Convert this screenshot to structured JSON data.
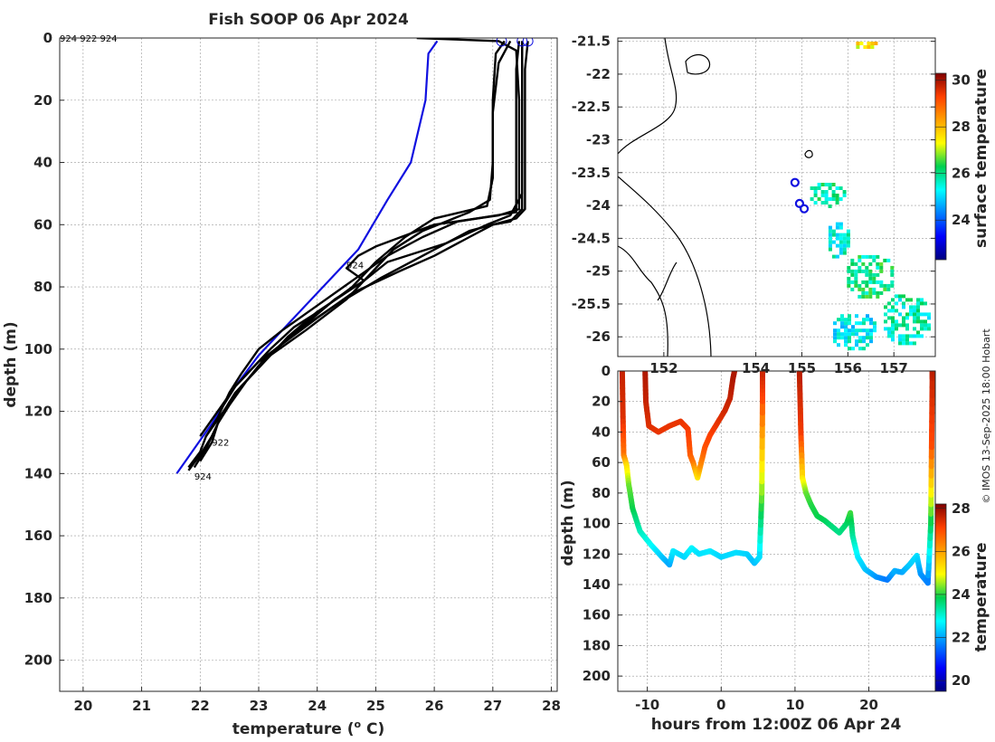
{
  "colors": {
    "mean_profile": "#1010e0",
    "profiles": "#000000",
    "ship": "#1010e0",
    "axes": "#262626"
  },
  "chart_data": [
    {
      "type": "line",
      "title": "Fish SOOP 06 Apr 2024",
      "xlabel": "temperature (",
      "xlabel_sup": "o",
      "xlabel_end": " C)",
      "ylabel": "depth (m)",
      "xlim": [
        19.6,
        28.1
      ],
      "ylim": [
        210,
        0
      ],
      "xticks": [
        20,
        21,
        22,
        23,
        24,
        25,
        26,
        27,
        28
      ],
      "yticks": [
        0,
        20,
        40,
        60,
        80,
        100,
        120,
        140,
        160,
        180,
        200
      ],
      "header_ids": "924 922 924",
      "annotations": [
        {
          "text": "924",
          "x": 24.5,
          "y": 74
        },
        {
          "text": "922",
          "x": 22.2,
          "y": 131
        },
        {
          "text": "924",
          "x": 21.9,
          "y": 142
        }
      ],
      "surface_markers": [
        {
          "x": 27.15,
          "y": 1
        },
        {
          "x": 27.5,
          "y": 1
        },
        {
          "x": 27.6,
          "y": 1
        }
      ],
      "series": [
        {
          "name": "mean",
          "color": "#1010e0",
          "points": [
            [
              26.05,
              1
            ],
            [
              25.9,
              5
            ],
            [
              25.85,
              20
            ],
            [
              25.6,
              40
            ],
            [
              25.2,
              52
            ],
            [
              24.7,
              68
            ],
            [
              24.3,
              76
            ],
            [
              23.6,
              90
            ],
            [
              23.0,
              102
            ],
            [
              22.6,
              112
            ],
            [
              22.2,
              124
            ],
            [
              21.9,
              132
            ],
            [
              21.6,
              140
            ]
          ]
        },
        {
          "name": "p1",
          "color": "#000000",
          "points": [
            [
              25.7,
              0
            ],
            [
              27.1,
              1
            ],
            [
              27.4,
              4
            ],
            [
              27.45,
              20
            ],
            [
              27.45,
              40
            ],
            [
              27.45,
              55
            ],
            [
              27.1,
              57
            ],
            [
              26.0,
              60
            ],
            [
              25.0,
              67
            ],
            [
              24.7,
              70
            ],
            [
              24.5,
              74
            ],
            [
              24.8,
              78
            ],
            [
              24.3,
              84
            ],
            [
              23.8,
              92
            ],
            [
              23.3,
              100
            ],
            [
              22.9,
              108
            ],
            [
              22.6,
              114
            ],
            [
              22.4,
              120
            ],
            [
              22.1,
              128
            ],
            [
              22.0,
              133
            ],
            [
              21.8,
              138
            ]
          ]
        },
        {
          "name": "p2",
          "color": "#000000",
          "points": [
            [
              27.2,
              1
            ],
            [
              27.05,
              5
            ],
            [
              27.0,
              20
            ],
            [
              27.0,
              40
            ],
            [
              26.95,
              52
            ],
            [
              26.6,
              56
            ],
            [
              25.8,
              62
            ],
            [
              25.3,
              68
            ],
            [
              24.9,
              76
            ],
            [
              24.5,
              84
            ],
            [
              23.8,
              94
            ],
            [
              23.2,
              102
            ],
            [
              22.8,
              110
            ],
            [
              22.5,
              118
            ],
            [
              22.3,
              124
            ],
            [
              22.2,
              130
            ],
            [
              22.0,
              136
            ]
          ]
        },
        {
          "name": "p3",
          "color": "#000000",
          "points": [
            [
              27.5,
              1
            ],
            [
              27.5,
              10
            ],
            [
              27.5,
              30
            ],
            [
              27.5,
              50
            ],
            [
              27.3,
              57
            ],
            [
              26.9,
              60
            ],
            [
              26.2,
              66
            ],
            [
              25.2,
              72
            ],
            [
              24.8,
              78
            ],
            [
              24.0,
              88
            ],
            [
              23.5,
              96
            ],
            [
              23.1,
              104
            ],
            [
              22.7,
              112
            ],
            [
              22.4,
              120
            ],
            [
              22.2,
              128
            ],
            [
              22.0,
              134
            ],
            [
              21.8,
              139
            ]
          ]
        },
        {
          "name": "p4",
          "color": "#000000",
          "points": [
            [
              27.6,
              1
            ],
            [
              27.55,
              10
            ],
            [
              27.55,
              35
            ],
            [
              27.55,
              55
            ],
            [
              27.4,
              58
            ],
            [
              26.6,
              62
            ],
            [
              25.8,
              70
            ],
            [
              25.1,
              77
            ],
            [
              24.3,
              86
            ],
            [
              23.6,
              95
            ],
            [
              23.1,
              103
            ],
            [
              22.8,
              110
            ],
            [
              22.5,
              117
            ],
            [
              22.3,
              124
            ],
            [
              22.1,
              132
            ],
            [
              21.9,
              138
            ]
          ]
        },
        {
          "name": "p5",
          "color": "#000000",
          "points": [
            [
              27.45,
              1
            ],
            [
              27.4,
              10
            ],
            [
              27.4,
              40
            ],
            [
              27.4,
              56
            ],
            [
              26.4,
              59
            ],
            [
              25.8,
              64
            ],
            [
              25.2,
              70
            ],
            [
              24.6,
              78
            ],
            [
              24.0,
              86
            ],
            [
              23.4,
              94
            ],
            [
              23.0,
              100
            ],
            [
              22.7,
              108
            ],
            [
              22.5,
              114
            ],
            [
              22.3,
              122
            ],
            [
              22.1,
              128
            ]
          ]
        },
        {
          "name": "p6",
          "color": "#000000",
          "points": [
            [
              27.3,
              1
            ],
            [
              27.1,
              8
            ],
            [
              27.0,
              24
            ],
            [
              27.0,
              45
            ],
            [
              26.9,
              54
            ],
            [
              26.0,
              58
            ],
            [
              25.5,
              64
            ],
            [
              25.0,
              72
            ],
            [
              24.6,
              80
            ],
            [
              24.1,
              87
            ],
            [
              23.6,
              93
            ],
            [
              23.2,
              100
            ],
            [
              22.9,
              106
            ],
            [
              22.6,
              112
            ],
            [
              22.4,
              118
            ]
          ]
        },
        {
          "name": "p7",
          "color": "#000000",
          "points": [
            [
              27.5,
              1
            ],
            [
              27.5,
              20
            ],
            [
              27.5,
              55
            ],
            [
              27.3,
              59
            ],
            [
              27.0,
              60
            ],
            [
              26.6,
              64
            ],
            [
              26.0,
              70
            ],
            [
              25.4,
              75
            ],
            [
              24.6,
              82
            ],
            [
              24.0,
              90
            ],
            [
              23.5,
              97
            ],
            [
              23.0,
              104
            ],
            [
              22.6,
              112
            ],
            [
              22.3,
              120
            ],
            [
              22.0,
              128
            ]
          ]
        }
      ]
    },
    {
      "type": "heatmap",
      "xticks": [
        152,
        154,
        155,
        156,
        157
      ],
      "yticks": [
        -21.5,
        -22,
        -22.5,
        -23,
        -23.5,
        -24,
        -24.5,
        -25,
        -25.5,
        -26
      ],
      "xlim": [
        151.0,
        157.9
      ],
      "ylim": [
        -26.3,
        -21.45
      ],
      "colorbar_label": "surface temperature",
      "colorbar_range": [
        22.3,
        30.3
      ],
      "colorbar_ticks": [
        24,
        26,
        28,
        30
      ],
      "ship_positions": [
        {
          "lon": 154.85,
          "lat": -23.65
        },
        {
          "lon": 154.95,
          "lat": -23.97
        },
        {
          "lon": 155.05,
          "lat": -24.05
        }
      ],
      "cloud_free_patches": [
        {
          "lon0": 155.1,
          "lon1": 155.9,
          "lat0": -24.0,
          "lat1": -23.6,
          "temp": 25.8
        },
        {
          "lon0": 155.5,
          "lon1": 156.0,
          "lat0": -24.8,
          "lat1": -24.2,
          "temp": 25.5
        },
        {
          "lon0": 155.9,
          "lon1": 157.0,
          "lat0": -25.4,
          "lat1": -24.7,
          "temp": 26.0
        },
        {
          "lon0": 156.7,
          "lon1": 157.8,
          "lat0": -26.1,
          "lat1": -25.3,
          "temp": 25.7
        },
        {
          "lon0": 155.6,
          "lon1": 156.6,
          "lat0": -26.2,
          "lat1": -25.6,
          "temp": 25.3
        },
        {
          "lon0": 156.1,
          "lon1": 156.6,
          "lat0": -21.6,
          "lat1": -21.45,
          "temp": 27.5
        }
      ]
    },
    {
      "type": "scatter",
      "xlabel": "hours from 12:00Z 06 Apr 24",
      "ylabel": "depth (m)",
      "colorbar_label": "temperature",
      "xlim": [
        -14,
        29
      ],
      "ylim": [
        210,
        0
      ],
      "xticks": [
        -10,
        0,
        10,
        20
      ],
      "yticks": [
        0,
        20,
        40,
        60,
        80,
        100,
        120,
        140,
        160,
        180,
        200
      ],
      "colorbar_range": [
        19.5,
        28.2
      ],
      "colorbar_ticks": [
        20,
        22,
        24,
        26,
        28
      ],
      "tracks": [
        {
          "t0": -13.4,
          "t1": 5.6,
          "points": [
            [
              -13.4,
              0,
              27.6
            ],
            [
              -13.3,
              30,
              27.4
            ],
            [
              -13.2,
              55,
              26.5
            ],
            [
              -12.8,
              62,
              25.3
            ],
            [
              -12.5,
              75,
              24.3
            ],
            [
              -12,
              90,
              23.9
            ],
            [
              -11,
              105,
              23.2
            ],
            [
              -9.5,
              114,
              22.8
            ],
            [
              -8,
              122,
              22.3
            ],
            [
              -7,
              127,
              22.0
            ],
            [
              -6.5,
              118,
              22.6
            ],
            [
              -5,
              122,
              22.4
            ],
            [
              -4,
              116,
              22.7
            ],
            [
              -3,
              120,
              22.5
            ],
            [
              -1.5,
              118,
              22.6
            ],
            [
              0,
              122,
              22.4
            ],
            [
              2,
              119,
              22.5
            ],
            [
              3.5,
              120,
              22.4
            ],
            [
              4.5,
              126,
              22.2
            ],
            [
              5.2,
              122,
              22.5
            ],
            [
              5.5,
              80,
              24.5
            ],
            [
              5.6,
              20,
              27.0
            ],
            [
              5.6,
              0,
              27.6
            ]
          ]
        },
        {
          "t0": -10.3,
          "t1": 1.8,
          "points": [
            [
              -10.3,
              0,
              27.8
            ],
            [
              -10.2,
              20,
              27.6
            ],
            [
              -9.8,
              36,
              27.4
            ],
            [
              -8.5,
              40,
              27.3
            ],
            [
              -7,
              36,
              27.3
            ],
            [
              -5.5,
              33,
              27.3
            ],
            [
              -4.5,
              38,
              27.2
            ],
            [
              -4.2,
              55,
              26.8
            ],
            [
              -3.8,
              60,
              26.5
            ],
            [
              -3.2,
              70,
              25.2
            ],
            [
              -2.8,
              62,
              26.2
            ],
            [
              -2.2,
              50,
              26.9
            ],
            [
              -1.5,
              42,
              27.1
            ],
            [
              -0.5,
              34,
              27.3
            ],
            [
              0.5,
              26,
              27.5
            ],
            [
              1.2,
              18,
              27.6
            ],
            [
              1.6,
              5,
              27.8
            ],
            [
              1.8,
              0,
              27.8
            ]
          ]
        },
        {
          "t0": 10.6,
          "t1": 28.6,
          "points": [
            [
              10.6,
              0,
              27.7
            ],
            [
              10.8,
              40,
              27.2
            ],
            [
              11,
              70,
              25.2
            ],
            [
              11.5,
              80,
              24.3
            ],
            [
              12.2,
              88,
              24.0
            ],
            [
              13,
              95,
              23.9
            ],
            [
              14,
              98,
              23.8
            ],
            [
              15,
              102,
              23.6
            ],
            [
              16,
              106,
              23.5
            ],
            [
              17,
              100,
              23.7
            ],
            [
              17.5,
              93,
              24.1
            ],
            [
              17.8,
              108,
              23.4
            ],
            [
              18.5,
              122,
              22.6
            ],
            [
              19.5,
              130,
              22.3
            ],
            [
              21,
              135,
              21.9
            ],
            [
              22.5,
              137,
              21.6
            ],
            [
              23.5,
              131,
              22.1
            ],
            [
              24.5,
              132,
              22.0
            ],
            [
              25.5,
              127,
              22.3
            ],
            [
              26.5,
              121,
              22.5
            ],
            [
              27,
              133,
              21.9
            ],
            [
              28,
              139,
              21.7
            ],
            [
              28.4,
              100,
              23.9
            ],
            [
              28.5,
              50,
              27.0
            ],
            [
              28.6,
              5,
              27.6
            ],
            [
              28.6,
              0,
              27.7
            ]
          ]
        }
      ]
    }
  ],
  "watermark": "© IMOS 13-Sep-2025 18:00 Hobart"
}
